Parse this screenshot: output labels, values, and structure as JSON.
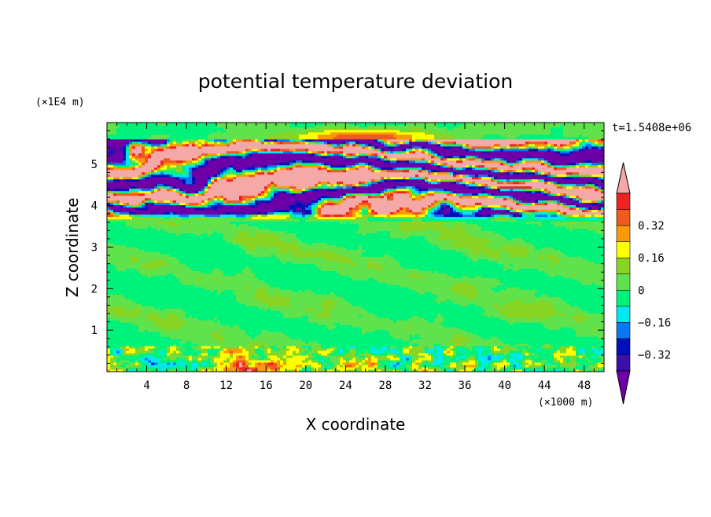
{
  "chart_data": {
    "type": "heatmap",
    "title": "potential temperature deviation",
    "xlabel": "X coordinate",
    "ylabel": "Z coordinate",
    "x_unit": "(×1000 m)",
    "y_unit": "(×1E4 m)",
    "time_label": "t=1.5408e+06",
    "xlim": [
      0,
      50
    ],
    "ylim": [
      0,
      6
    ],
    "x_ticks": [
      4,
      8,
      12,
      16,
      20,
      24,
      28,
      32,
      36,
      40,
      44,
      48
    ],
    "y_ticks": [
      1,
      2,
      3,
      4,
      5
    ],
    "x_tick_labels": [
      "4",
      "8",
      "12",
      "16",
      "20",
      "24",
      "28",
      "32",
      "36",
      "40",
      "44",
      "48"
    ],
    "y_tick_labels": [
      "1",
      "2",
      "3",
      "4",
      "5"
    ],
    "colorbar": {
      "levels": [
        -0.4,
        -0.36,
        -0.32,
        -0.24,
        -0.16,
        -0.08,
        0,
        0.08,
        0.16,
        0.24,
        0.32,
        0.36,
        0.4
      ],
      "labeled_levels": [
        0.32,
        0.16,
        0,
        -0.16,
        -0.32
      ],
      "labels": [
        "0.32",
        "0.16",
        "0",
        "−0.16",
        "−0.32"
      ],
      "colors_top_to_bottom": [
        "#f4a8a8",
        "#ee2222",
        "#f05a1e",
        "#fa9a0a",
        "#ffff00",
        "#8ad524",
        "#60e24c",
        "#00f27a",
        "#00e8f0",
        "#0a78f0",
        "#0010bb",
        "#3a0eaa",
        "#6e00aa"
      ]
    },
    "bands": [
      {
        "z": [
          0.0,
          0.62
        ],
        "regime": "surface-mixed"
      },
      {
        "z": [
          0.62,
          3.65
        ],
        "regime": "near-zero"
      },
      {
        "z": [
          3.65,
          5.6
        ],
        "regime": "strong-layers"
      },
      {
        "z": [
          5.6,
          6.0
        ],
        "regime": "near-zero"
      }
    ]
  }
}
